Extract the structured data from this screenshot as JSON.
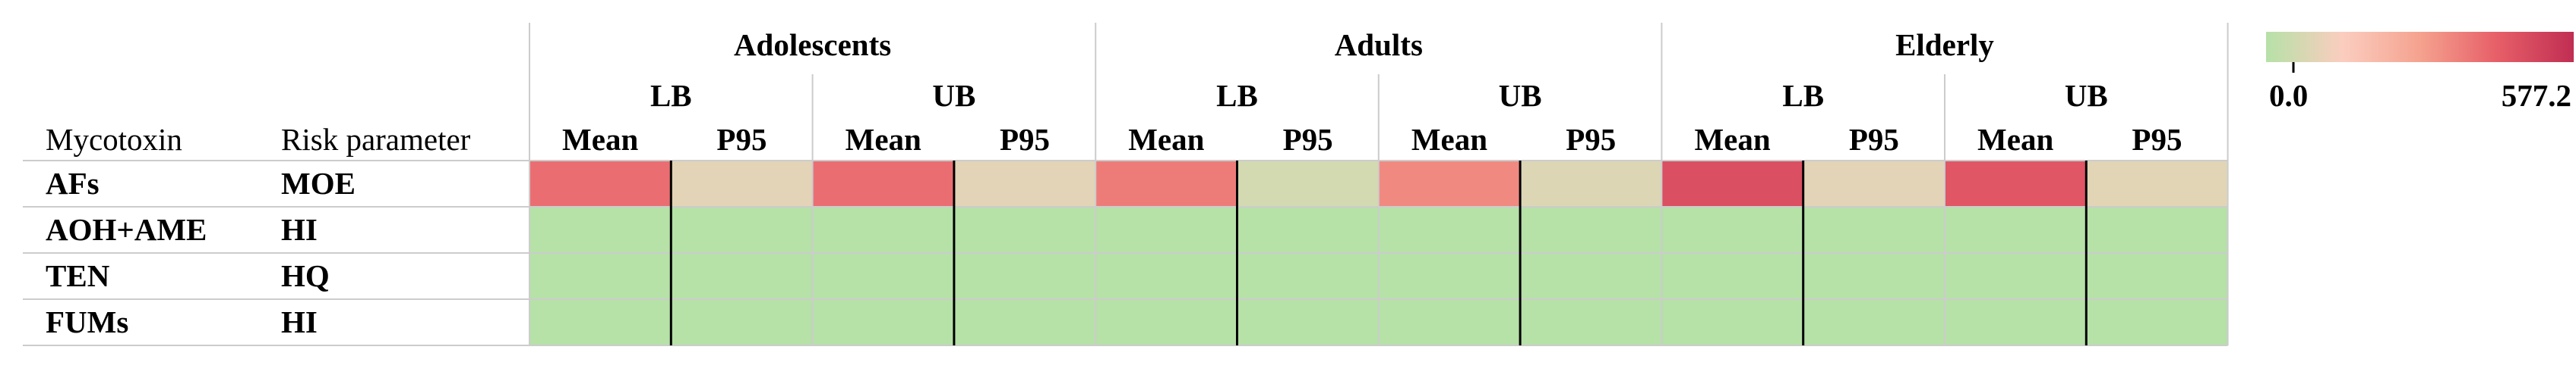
{
  "chart_data": {
    "type": "heatmap",
    "title": "",
    "row_header_labels": [
      "Mycotoxin",
      "Risk parameter"
    ],
    "groups": [
      {
        "name": "Adolescents",
        "bounds": [
          {
            "name": "LB",
            "stats": [
              "Mean",
              "P95"
            ]
          },
          {
            "name": "UB",
            "stats": [
              "Mean",
              "P95"
            ]
          }
        ]
      },
      {
        "name": "Adults",
        "bounds": [
          {
            "name": "LB",
            "stats": [
              "Mean",
              "P95"
            ]
          },
          {
            "name": "UB",
            "stats": [
              "Mean",
              "P95"
            ]
          }
        ]
      },
      {
        "name": "Elderly",
        "bounds": [
          {
            "name": "LB",
            "stats": [
              "Mean",
              "P95"
            ]
          },
          {
            "name": "UB",
            "stats": [
              "Mean",
              "P95"
            ]
          }
        ]
      }
    ],
    "rows": [
      {
        "mycotoxin": "AFs",
        "parameter": "MOE",
        "values": [
          400,
          95,
          400,
          95,
          370,
          60,
          340,
          80,
          480,
          95,
          460,
          90
        ]
      },
      {
        "mycotoxin": "AOH+AME",
        "parameter": "HI",
        "values": [
          0.1,
          0.1,
          0.1,
          0.1,
          0.1,
          0.1,
          0.1,
          0.1,
          0.1,
          0.1,
          0.1,
          0.1
        ]
      },
      {
        "mycotoxin": "TEN",
        "parameter": "HQ",
        "values": [
          0.1,
          0.1,
          0.1,
          0.1,
          0.1,
          0.1,
          0.1,
          0.1,
          0.1,
          0.1,
          0.1,
          0.1
        ]
      },
      {
        "mycotoxin": "FUMs",
        "parameter": "HI",
        "values": [
          0.1,
          0.1,
          0.1,
          0.1,
          0.1,
          0.1,
          0.1,
          0.1,
          0.1,
          0.1,
          0.1,
          0.1
        ]
      }
    ],
    "color_scale": {
      "min_label": "0.0",
      "max_label": "577.2",
      "min": 0,
      "max": 577.2,
      "stops": [
        "#b6e1a7",
        "#fbcdbf",
        "#f5a28f",
        "#e75f68",
        "#c02e52"
      ]
    },
    "legend_position": "top-right"
  }
}
